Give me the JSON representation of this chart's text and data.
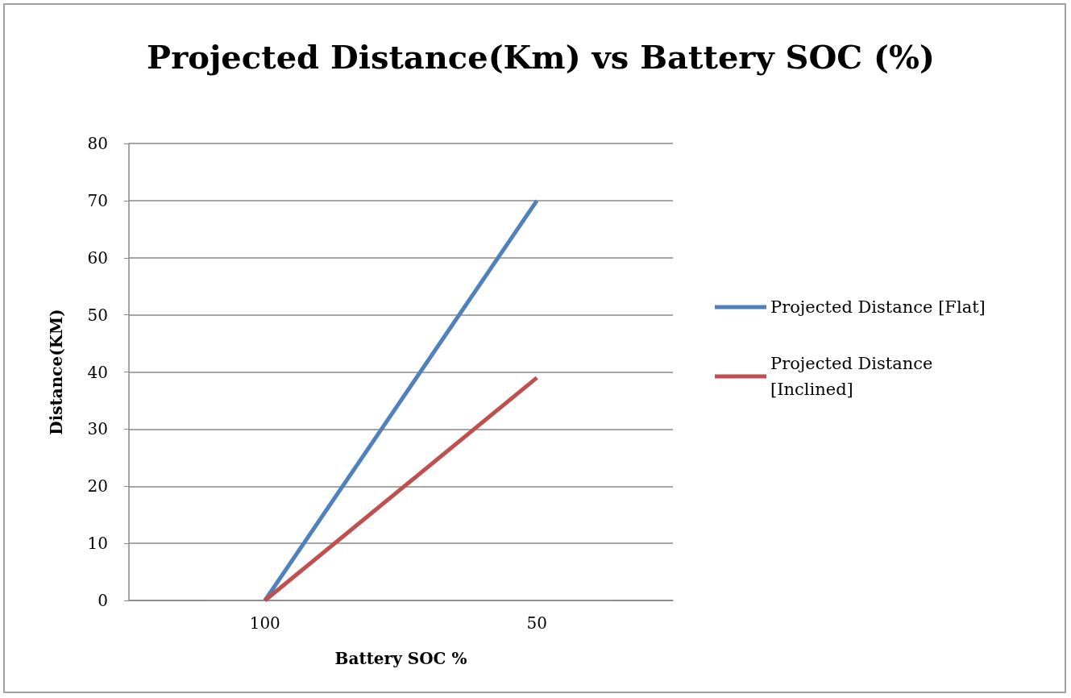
{
  "chart_data": {
    "type": "line",
    "title": "Projected Distance(Km) vs Battery SOC (%)",
    "xlabel": "Battery SOC %",
    "ylabel": "Distance(KM)",
    "categories": [
      "100",
      "50"
    ],
    "series": [
      {
        "name": "Projected Distance [Flat]",
        "color": "#4f81bd",
        "values": [
          0,
          70
        ]
      },
      {
        "name": "Projected Distance [Inclined]",
        "color": "#c0504d",
        "values": [
          0,
          39
        ]
      }
    ],
    "ylim": [
      0,
      80
    ],
    "yticks": [
      0,
      10,
      20,
      30,
      40,
      50,
      60,
      70,
      80
    ],
    "grid": "y",
    "legend": "right",
    "marker": "none",
    "line_style": "solid"
  }
}
